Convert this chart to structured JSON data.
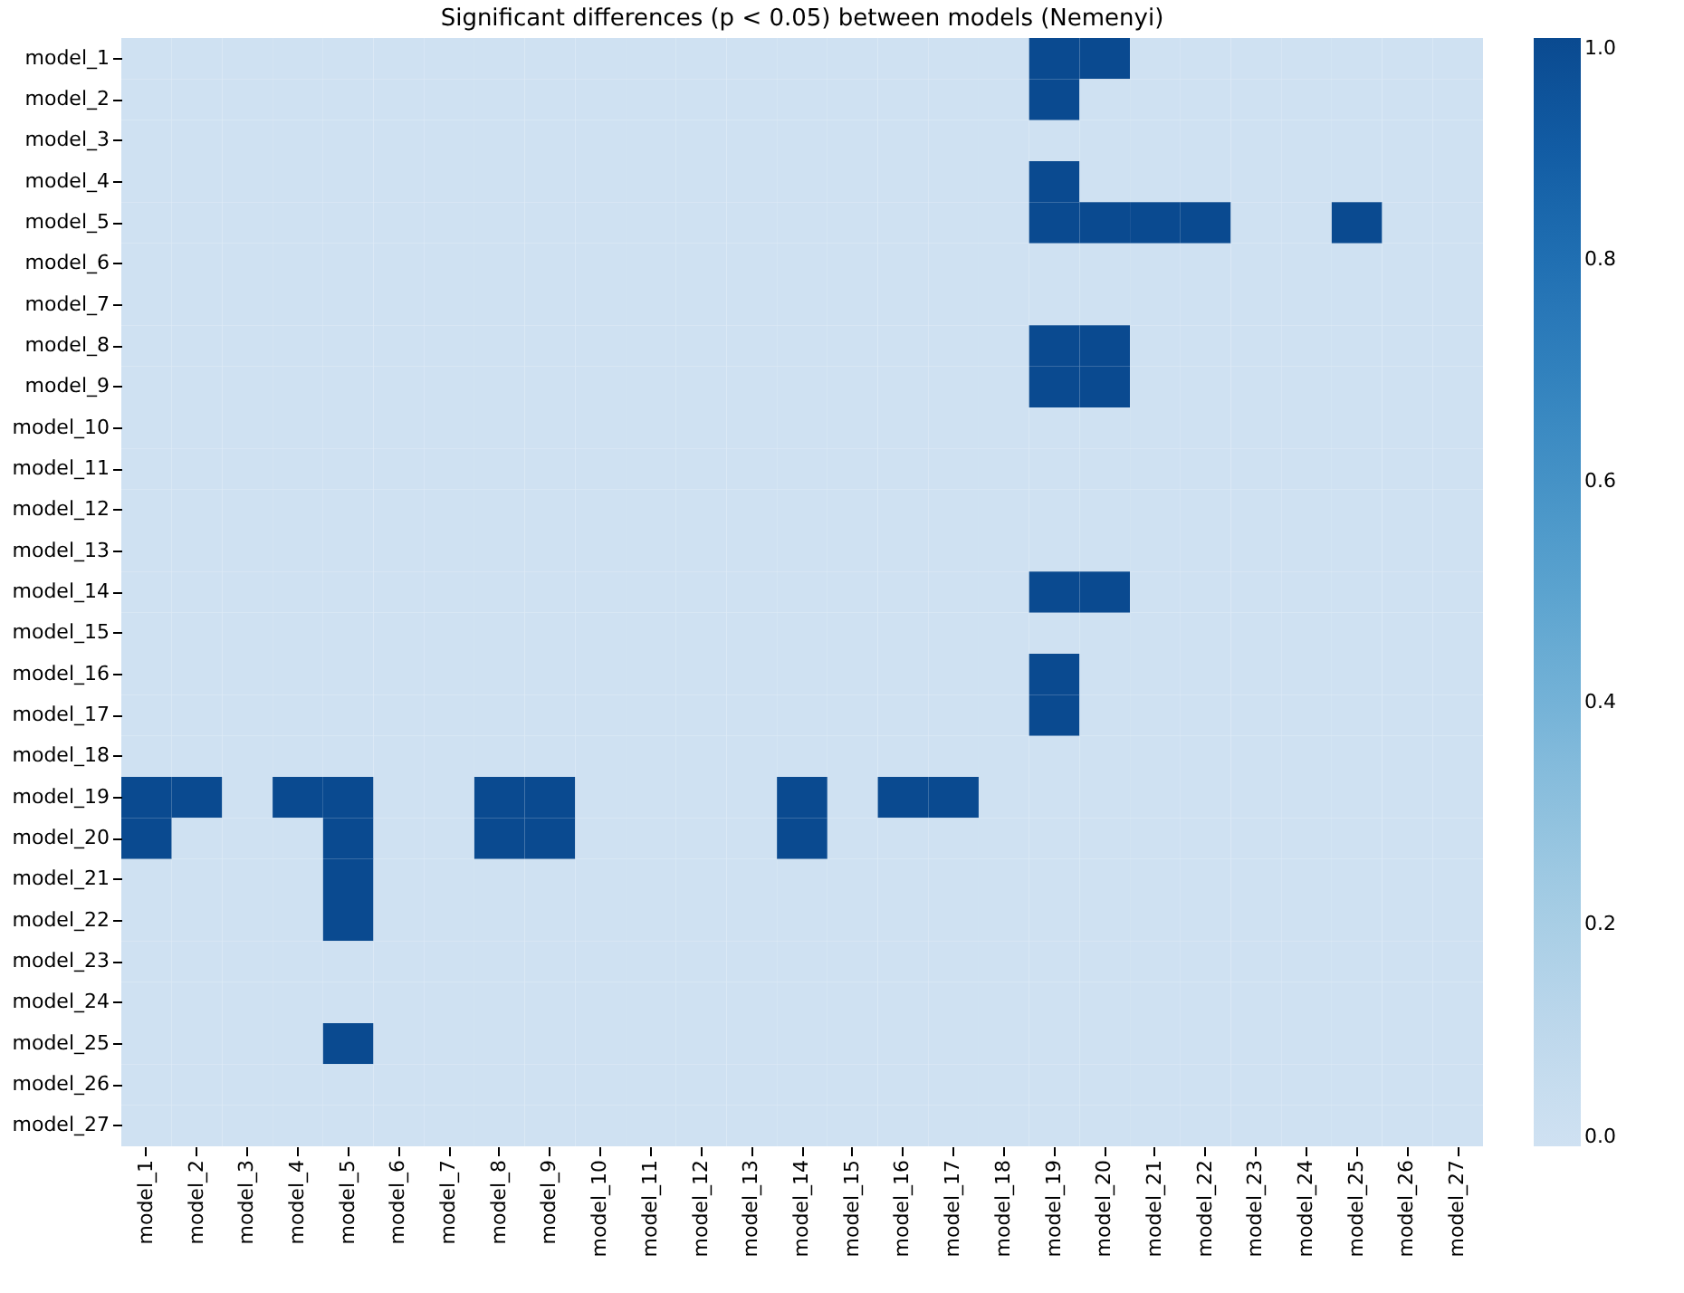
{
  "chart_data": {
    "type": "heatmap",
    "title": "Significant differences (p < 0.05) between models (Nemenyi)",
    "categories": [
      "model_1",
      "model_2",
      "model_3",
      "model_4",
      "model_5",
      "model_6",
      "model_7",
      "model_8",
      "model_9",
      "model_10",
      "model_11",
      "model_12",
      "model_13",
      "model_14",
      "model_15",
      "model_16",
      "model_17",
      "model_18",
      "model_19",
      "model_20",
      "model_21",
      "model_22",
      "model_23",
      "model_24",
      "model_25",
      "model_26",
      "model_27"
    ],
    "y_categories": [
      "model_1",
      "model_2",
      "model_3",
      "model_4",
      "model_5",
      "model_6",
      "model_7",
      "model_8",
      "model_9",
      "model_10",
      "model_11",
      "model_12",
      "model_13",
      "model_14",
      "model_15",
      "model_16",
      "model_17",
      "model_18",
      "model_19",
      "model_20",
      "model_21",
      "model_22",
      "model_23",
      "model_24",
      "model_25",
      "model_26",
      "model_27"
    ],
    "cells": [
      [
        0,
        0,
        0,
        0,
        0,
        0,
        0,
        0,
        0,
        0,
        0,
        0,
        0,
        0,
        0,
        0,
        0,
        0,
        1,
        1,
        0,
        0,
        0,
        0,
        0,
        0,
        0
      ],
      [
        0,
        0,
        0,
        0,
        0,
        0,
        0,
        0,
        0,
        0,
        0,
        0,
        0,
        0,
        0,
        0,
        0,
        0,
        1,
        0,
        0,
        0,
        0,
        0,
        0,
        0,
        0
      ],
      [
        0,
        0,
        0,
        0,
        0,
        0,
        0,
        0,
        0,
        0,
        0,
        0,
        0,
        0,
        0,
        0,
        0,
        0,
        0,
        0,
        0,
        0,
        0,
        0,
        0,
        0,
        0
      ],
      [
        0,
        0,
        0,
        0,
        0,
        0,
        0,
        0,
        0,
        0,
        0,
        0,
        0,
        0,
        0,
        0,
        0,
        0,
        1,
        0,
        0,
        0,
        0,
        0,
        0,
        0,
        0
      ],
      [
        0,
        0,
        0,
        0,
        0,
        0,
        0,
        0,
        0,
        0,
        0,
        0,
        0,
        0,
        0,
        0,
        0,
        0,
        1,
        1,
        1,
        1,
        0,
        0,
        1,
        0,
        0
      ],
      [
        0,
        0,
        0,
        0,
        0,
        0,
        0,
        0,
        0,
        0,
        0,
        0,
        0,
        0,
        0,
        0,
        0,
        0,
        0,
        0,
        0,
        0,
        0,
        0,
        0,
        0,
        0
      ],
      [
        0,
        0,
        0,
        0,
        0,
        0,
        0,
        0,
        0,
        0,
        0,
        0,
        0,
        0,
        0,
        0,
        0,
        0,
        0,
        0,
        0,
        0,
        0,
        0,
        0,
        0,
        0
      ],
      [
        0,
        0,
        0,
        0,
        0,
        0,
        0,
        0,
        0,
        0,
        0,
        0,
        0,
        0,
        0,
        0,
        0,
        0,
        1,
        1,
        0,
        0,
        0,
        0,
        0,
        0,
        0
      ],
      [
        0,
        0,
        0,
        0,
        0,
        0,
        0,
        0,
        0,
        0,
        0,
        0,
        0,
        0,
        0,
        0,
        0,
        0,
        1,
        1,
        0,
        0,
        0,
        0,
        0,
        0,
        0
      ],
      [
        0,
        0,
        0,
        0,
        0,
        0,
        0,
        0,
        0,
        0,
        0,
        0,
        0,
        0,
        0,
        0,
        0,
        0,
        0,
        0,
        0,
        0,
        0,
        0,
        0,
        0,
        0
      ],
      [
        0,
        0,
        0,
        0,
        0,
        0,
        0,
        0,
        0,
        0,
        0,
        0,
        0,
        0,
        0,
        0,
        0,
        0,
        0,
        0,
        0,
        0,
        0,
        0,
        0,
        0,
        0
      ],
      [
        0,
        0,
        0,
        0,
        0,
        0,
        0,
        0,
        0,
        0,
        0,
        0,
        0,
        0,
        0,
        0,
        0,
        0,
        0,
        0,
        0,
        0,
        0,
        0,
        0,
        0,
        0
      ],
      [
        0,
        0,
        0,
        0,
        0,
        0,
        0,
        0,
        0,
        0,
        0,
        0,
        0,
        0,
        0,
        0,
        0,
        0,
        0,
        0,
        0,
        0,
        0,
        0,
        0,
        0,
        0
      ],
      [
        0,
        0,
        0,
        0,
        0,
        0,
        0,
        0,
        0,
        0,
        0,
        0,
        0,
        0,
        0,
        0,
        0,
        0,
        1,
        1,
        0,
        0,
        0,
        0,
        0,
        0,
        0
      ],
      [
        0,
        0,
        0,
        0,
        0,
        0,
        0,
        0,
        0,
        0,
        0,
        0,
        0,
        0,
        0,
        0,
        0,
        0,
        0,
        0,
        0,
        0,
        0,
        0,
        0,
        0,
        0
      ],
      [
        0,
        0,
        0,
        0,
        0,
        0,
        0,
        0,
        0,
        0,
        0,
        0,
        0,
        0,
        0,
        0,
        0,
        0,
        1,
        0,
        0,
        0,
        0,
        0,
        0,
        0,
        0
      ],
      [
        0,
        0,
        0,
        0,
        0,
        0,
        0,
        0,
        0,
        0,
        0,
        0,
        0,
        0,
        0,
        0,
        0,
        0,
        1,
        0,
        0,
        0,
        0,
        0,
        0,
        0,
        0
      ],
      [
        0,
        0,
        0,
        0,
        0,
        0,
        0,
        0,
        0,
        0,
        0,
        0,
        0,
        0,
        0,
        0,
        0,
        0,
        0,
        0,
        0,
        0,
        0,
        0,
        0,
        0,
        0
      ],
      [
        1,
        1,
        0,
        1,
        1,
        0,
        0,
        1,
        1,
        0,
        0,
        0,
        0,
        1,
        0,
        1,
        1,
        0,
        0,
        0,
        0,
        0,
        0,
        0,
        0,
        0,
        0
      ],
      [
        1,
        0,
        0,
        0,
        1,
        0,
        0,
        1,
        1,
        0,
        0,
        0,
        0,
        1,
        0,
        0,
        0,
        0,
        0,
        0,
        0,
        0,
        0,
        0,
        0,
        0,
        0
      ],
      [
        0,
        0,
        0,
        0,
        1,
        0,
        0,
        0,
        0,
        0,
        0,
        0,
        0,
        0,
        0,
        0,
        0,
        0,
        0,
        0,
        0,
        0,
        0,
        0,
        0,
        0,
        0
      ],
      [
        0,
        0,
        0,
        0,
        1,
        0,
        0,
        0,
        0,
        0,
        0,
        0,
        0,
        0,
        0,
        0,
        0,
        0,
        0,
        0,
        0,
        0,
        0,
        0,
        0,
        0,
        0
      ],
      [
        0,
        0,
        0,
        0,
        0,
        0,
        0,
        0,
        0,
        0,
        0,
        0,
        0,
        0,
        0,
        0,
        0,
        0,
        0,
        0,
        0,
        0,
        0,
        0,
        0,
        0,
        0
      ],
      [
        0,
        0,
        0,
        0,
        0,
        0,
        0,
        0,
        0,
        0,
        0,
        0,
        0,
        0,
        0,
        0,
        0,
        0,
        0,
        0,
        0,
        0,
        0,
        0,
        0,
        0,
        0
      ],
      [
        0,
        0,
        0,
        0,
        1,
        0,
        0,
        0,
        0,
        0,
        0,
        0,
        0,
        0,
        0,
        0,
        0,
        0,
        0,
        0,
        0,
        0,
        0,
        0,
        0,
        0,
        0
      ],
      [
        0,
        0,
        0,
        0,
        0,
        0,
        0,
        0,
        0,
        0,
        0,
        0,
        0,
        0,
        0,
        0,
        0,
        0,
        0,
        0,
        0,
        0,
        0,
        0,
        0,
        0,
        0
      ],
      [
        0,
        0,
        0,
        0,
        0,
        0,
        0,
        0,
        0,
        0,
        0,
        0,
        0,
        0,
        0,
        0,
        0,
        0,
        0,
        0,
        0,
        0,
        0,
        0,
        0,
        0,
        0
      ]
    ],
    "clim": [
      0,
      1
    ],
    "cticks": [
      {
        "value": 0,
        "label": "0.0"
      },
      {
        "value": 0.2,
        "label": "0.2"
      },
      {
        "value": 0.4,
        "label": "0.4"
      },
      {
        "value": 0.6,
        "label": "0.6"
      },
      {
        "value": 0.8,
        "label": "0.8"
      },
      {
        "value": 1,
        "label": "1.0"
      }
    ]
  }
}
